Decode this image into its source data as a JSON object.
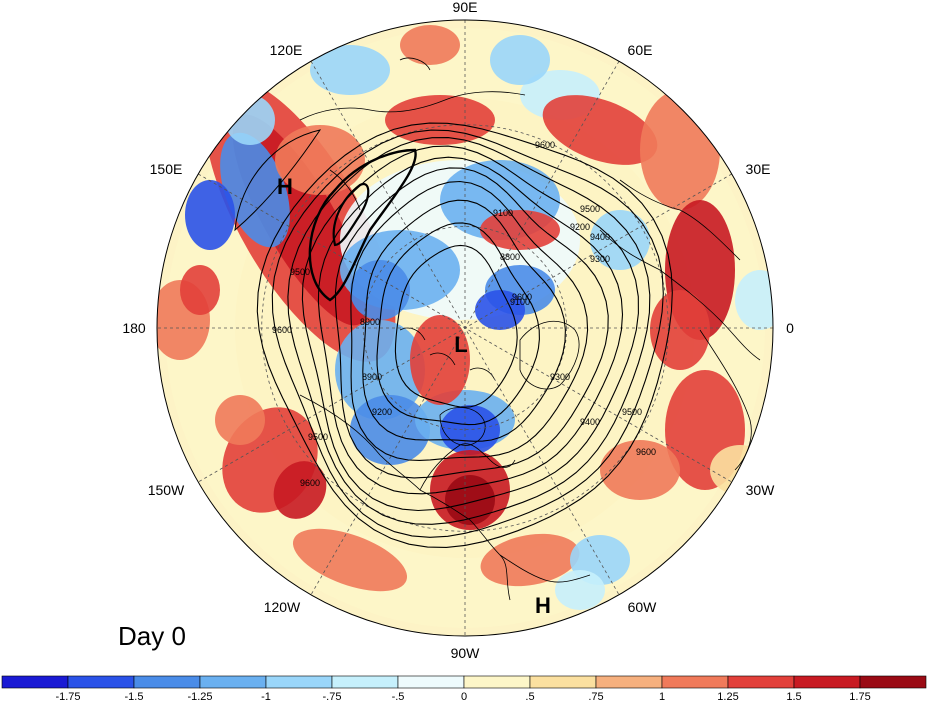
{
  "map": {
    "projection": "north polar stereographic",
    "day_label": "Day 0",
    "longitude_labels": [
      "90E",
      "60E",
      "30E",
      "0",
      "30W",
      "60W",
      "90W",
      "120W",
      "150W",
      "180",
      "150E",
      "120E"
    ],
    "pressure_systems": [
      {
        "type": "high",
        "label": "H",
        "region": "east-asia-pacific"
      },
      {
        "type": "low",
        "label": "L",
        "region": "pole"
      },
      {
        "type": "high",
        "label": "H",
        "region": "atlantic-subtropics"
      }
    ],
    "contour_labels": [
      "9600",
      "9500",
      "9400",
      "9300",
      "9200",
      "9100",
      "8900",
      "8800",
      "8900",
      "9100",
      "9300",
      "9400",
      "9500",
      "9600",
      "9600",
      "9500",
      "9200",
      "9500",
      "9600",
      "9600"
    ],
    "colors": {
      "ocean_background": "#fdf3c6",
      "land_lines": "#000000",
      "grid_lines": "#555555"
    }
  },
  "colorbar": {
    "tick_labels": [
      "-1.75",
      "-1.5",
      "-1.25",
      "-1",
      "-.75",
      "-.5",
      "0",
      ".5",
      ".75",
      "1",
      "1.25",
      "1.5",
      "1.75"
    ],
    "colors": [
      "#1a1ad4",
      "#2a52e8",
      "#4a8ce8",
      "#6ab0f0",
      "#9ad6fa",
      "#c6f0fc",
      "#eefbfd",
      "#fdf6c8",
      "#fbe0a0",
      "#f6b07e",
      "#f07a5a",
      "#e2403a",
      "#c81a22",
      "#9a0a14"
    ]
  }
}
